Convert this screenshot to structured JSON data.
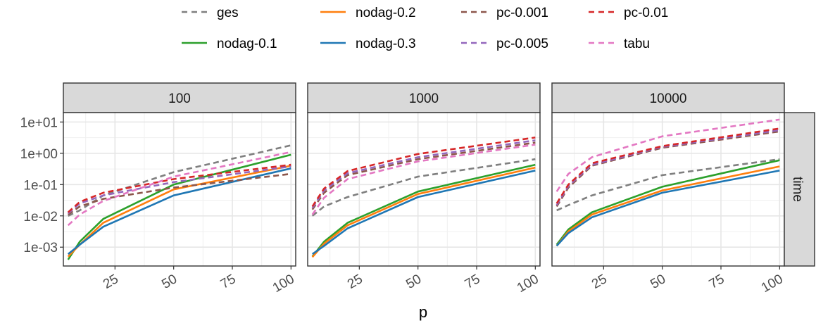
{
  "chart_data": {
    "type": "line",
    "facet_variable": "n",
    "facets": [
      "100",
      "1000",
      "10000"
    ],
    "row_strip": "time",
    "xlabel": "p",
    "ylabel": "",
    "x_ticks": [
      25,
      50,
      75,
      100
    ],
    "x_tick_labels": [
      "25",
      "50",
      "75",
      "100"
    ],
    "xlim": [
      3,
      102
    ],
    "y_scale": "log10",
    "y_ticks": [
      0.001,
      0.01,
      0.1,
      1,
      10
    ],
    "y_tick_labels": [
      "1e-03",
      "1e-02",
      "1e-01",
      "1e+00",
      "1e+01"
    ],
    "ylim": [
      0.00025,
      20
    ],
    "x": [
      5,
      10,
      20,
      50,
      100
    ],
    "grid": true,
    "legend_position": "top",
    "legend_entries": [
      "ges",
      "nodag-0.1",
      "nodag-0.2",
      "nodag-0.3",
      "pc-0.001",
      "pc-0.005",
      "pc-0.01",
      "tabu"
    ],
    "series": [
      {
        "name": "ges",
        "color": "#7f7f7f",
        "dashed": true,
        "values_by_facet": [
          [
            0.01,
            0.015,
            0.045,
            0.25,
            1.8
          ],
          [
            0.01,
            0.02,
            0.04,
            0.18,
            0.65
          ],
          [
            0.015,
            0.022,
            0.045,
            0.2,
            0.65
          ]
        ]
      },
      {
        "name": "nodag-0.1",
        "color": "#2ca02c",
        "dashed": false,
        "values_by_facet": [
          [
            0.0004,
            0.0015,
            0.008,
            0.1,
            0.9
          ],
          [
            0.0005,
            0.0015,
            0.006,
            0.06,
            0.43
          ],
          [
            0.0012,
            0.0037,
            0.013,
            0.085,
            0.6
          ]
        ]
      },
      {
        "name": "nodag-0.2",
        "color": "#ff7f0e",
        "dashed": false,
        "values_by_facet": [
          [
            0.0005,
            0.0012,
            0.006,
            0.07,
            0.4
          ],
          [
            0.00048,
            0.0013,
            0.005,
            0.05,
            0.35
          ],
          [
            0.0011,
            0.0032,
            0.011,
            0.065,
            0.38
          ]
        ]
      },
      {
        "name": "nodag-0.3",
        "color": "#1f77b4",
        "dashed": false,
        "values_by_facet": [
          [
            0.0006,
            0.0012,
            0.0045,
            0.045,
            0.33
          ],
          [
            0.0006,
            0.0011,
            0.004,
            0.04,
            0.28
          ],
          [
            0.0011,
            0.0028,
            0.009,
            0.055,
            0.28
          ]
        ]
      },
      {
        "name": "pc-0.001",
        "color": "#8c564b",
        "dashed": true,
        "values_by_facet": [
          [
            0.011,
            0.02,
            0.035,
            0.08,
            0.22
          ],
          [
            0.016,
            0.055,
            0.2,
            0.65,
            2.2
          ],
          [
            0.02,
            0.08,
            0.4,
            1.5,
            5.0
          ]
        ]
      },
      {
        "name": "pc-0.005",
        "color": "#9467bd",
        "dashed": true,
        "values_by_facet": [
          [
            0.012,
            0.025,
            0.045,
            0.12,
            0.38
          ],
          [
            0.018,
            0.065,
            0.23,
            0.75,
            2.6
          ],
          [
            0.022,
            0.09,
            0.43,
            1.6,
            5.5
          ]
        ]
      },
      {
        "name": "pc-0.01",
        "color": "#d62728",
        "dashed": true,
        "values_by_facet": [
          [
            0.013,
            0.028,
            0.055,
            0.15,
            0.43
          ],
          [
            0.02,
            0.075,
            0.27,
            0.95,
            3.2
          ],
          [
            0.025,
            0.1,
            0.48,
            1.7,
            6.2
          ]
        ]
      },
      {
        "name": "tabu",
        "color": "#e377c2",
        "dashed": true,
        "values_by_facet": [
          [
            0.005,
            0.011,
            0.03,
            0.18,
            1.1
          ],
          [
            0.011,
            0.038,
            0.15,
            0.55,
            1.9
          ],
          [
            0.06,
            0.22,
            0.75,
            3.5,
            12.0
          ]
        ]
      }
    ]
  }
}
